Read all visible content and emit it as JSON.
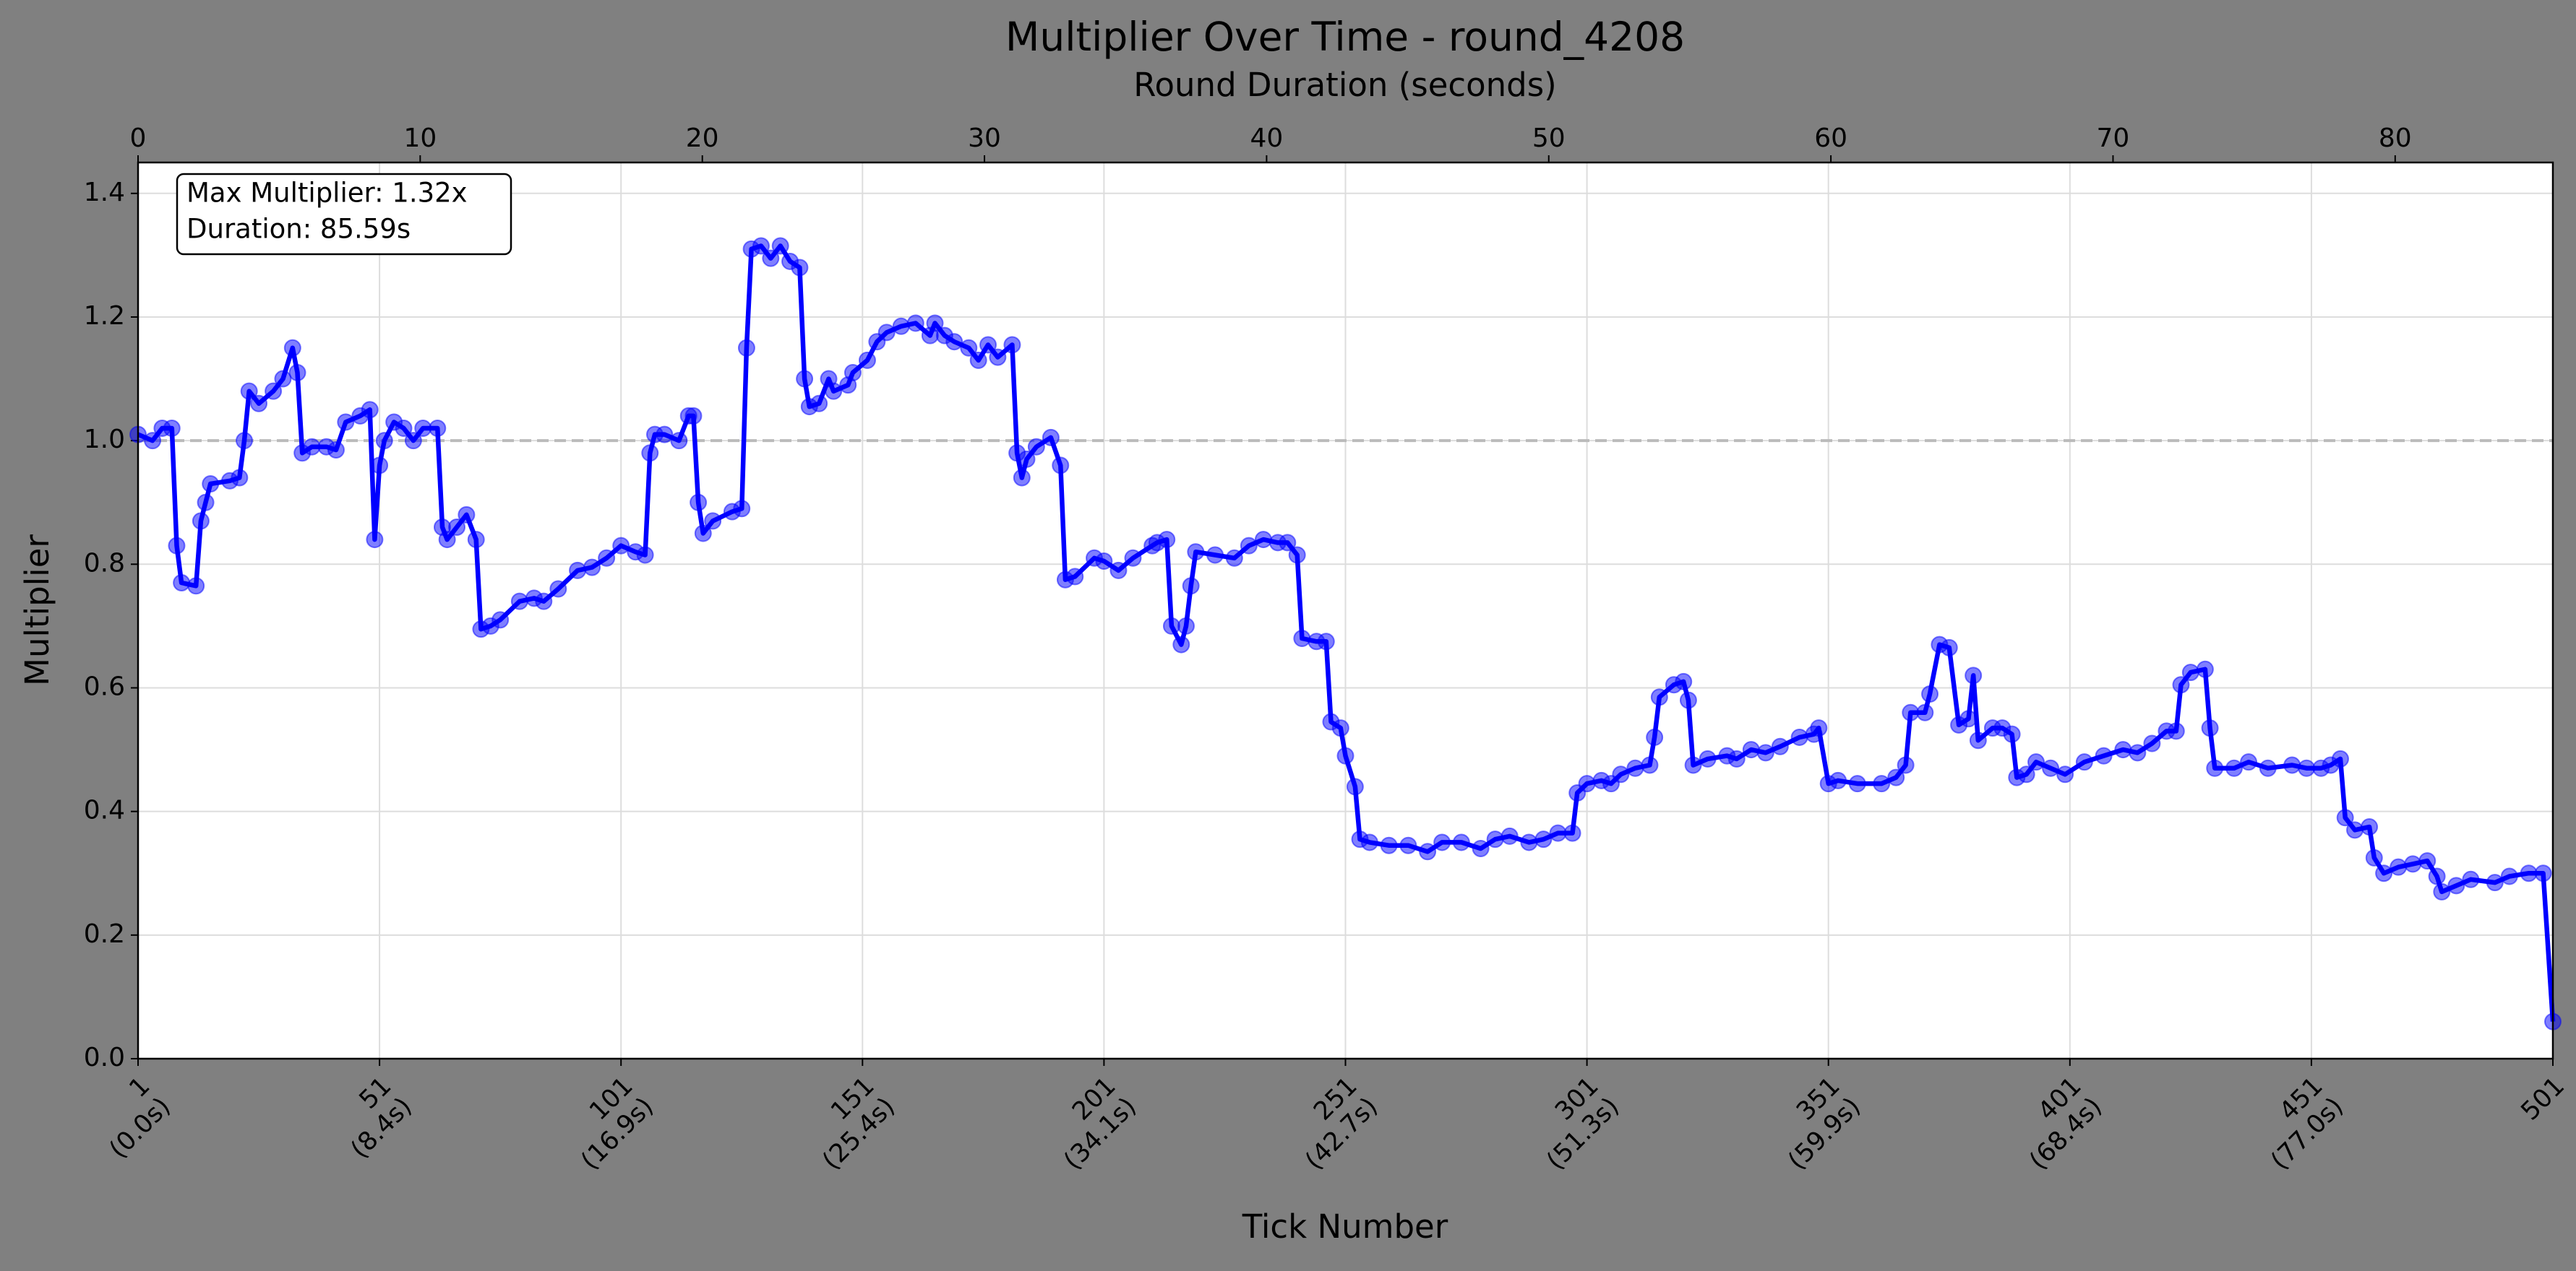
{
  "chart_data": {
    "type": "line",
    "title": "Multiplier Over Time - round_4208",
    "xlabel": "Tick Number",
    "x2label": "Round Duration (seconds)",
    "ylabel": "Multiplier",
    "annotations": [
      "Max Multiplier: 1.32x",
      "Duration: 85.59s"
    ],
    "color": "#0000ff",
    "grid": true,
    "hline": 1.0,
    "xlim": [
      1,
      501
    ],
    "xticks": [
      {
        "value": 1,
        "label": "1\n(0.0s)"
      },
      {
        "value": 51,
        "label": "51\n(8.4s)"
      },
      {
        "value": 101,
        "label": "101\n(16.9s)"
      },
      {
        "value": 151,
        "label": "151\n(25.4s)"
      },
      {
        "value": 201,
        "label": "201\n(34.1s)"
      },
      {
        "value": 251,
        "label": "251\n(42.7s)"
      },
      {
        "value": 301,
        "label": "301\n(51.3s)"
      },
      {
        "value": 351,
        "label": "351\n(59.9s)"
      },
      {
        "value": 401,
        "label": "401\n(68.4s)"
      },
      {
        "value": 451,
        "label": "451\n(77.0s)"
      },
      {
        "value": 501,
        "label": "501"
      }
    ],
    "x2lim": [
      0,
      85.59
    ],
    "x2ticks": [
      0,
      10,
      20,
      30,
      40,
      50,
      60,
      70,
      80
    ],
    "ylim": [
      0,
      1.45
    ],
    "yticks": [
      {
        "value": 0,
        "label": "0.0"
      },
      0.2,
      0.4,
      0.6,
      0.8,
      {
        "value": 1,
        "label": "1.0"
      },
      1.2,
      1.4
    ],
    "x": [
      1,
      4,
      6,
      8,
      9,
      10,
      13,
      14,
      15,
      16,
      20,
      22,
      23,
      24,
      26,
      29,
      31,
      33,
      34,
      35,
      37,
      40,
      42,
      44,
      47,
      49,
      50,
      51,
      52,
      54,
      56,
      58,
      60,
      63,
      64,
      65,
      67,
      69,
      71,
      72,
      74,
      76,
      80,
      83,
      85,
      88,
      92,
      95,
      98,
      101,
      104,
      106,
      107,
      108,
      110,
      113,
      115,
      116,
      117,
      118,
      120,
      124,
      126,
      127,
      128,
      130,
      132,
      134,
      136,
      138,
      139,
      140,
      142,
      144,
      145,
      148,
      149,
      152,
      154,
      156,
      159,
      162,
      165,
      166,
      168,
      170,
      173,
      175,
      177,
      179,
      182,
      183,
      184,
      185,
      187,
      190,
      192,
      193,
      195,
      199,
      201,
      204,
      207,
      211,
      212,
      214,
      215,
      217,
      218,
      219,
      220,
      224,
      228,
      231,
      234,
      237,
      239,
      241,
      242,
      245,
      247,
      248,
      250,
      251,
      253,
      254,
      256,
      260,
      264,
      268,
      271,
      275,
      279,
      282,
      285,
      289,
      292,
      295,
      298,
      299,
      301,
      304,
      306,
      308,
      311,
      314,
      315,
      316,
      319,
      321,
      322,
      323,
      326,
      330,
      332,
      335,
      338,
      341,
      345,
      348,
      349,
      351,
      353,
      357,
      362,
      365,
      367,
      368,
      371,
      372,
      374,
      376,
      378,
      380,
      381,
      382,
      385,
      387,
      389,
      390,
      392,
      394,
      397,
      400,
      404,
      408,
      412,
      415,
      418,
      421,
      423,
      424,
      426,
      429,
      430,
      431,
      435,
      438,
      442,
      447,
      450,
      453,
      455,
      457,
      458,
      460,
      463,
      464,
      466,
      469,
      472,
      475,
      477,
      478,
      481,
      484,
      489,
      492,
      496,
      499,
      501
    ],
    "values": [
      1.01,
      1.0,
      1.02,
      1.02,
      0.83,
      0.77,
      0.765,
      0.87,
      0.9,
      0.93,
      0.935,
      0.94,
      1.0,
      1.08,
      1.06,
      1.08,
      1.1,
      1.15,
      1.11,
      0.98,
      0.99,
      0.99,
      0.985,
      1.03,
      1.04,
      1.05,
      0.84,
      0.96,
      1.0,
      1.03,
      1.02,
      1.0,
      1.02,
      1.02,
      0.86,
      0.84,
      0.86,
      0.88,
      0.84,
      0.695,
      0.7,
      0.71,
      0.74,
      0.745,
      0.74,
      0.76,
      0.79,
      0.795,
      0.81,
      0.83,
      0.82,
      0.815,
      0.98,
      1.01,
      1.01,
      1.0,
      1.04,
      1.04,
      0.9,
      0.85,
      0.87,
      0.885,
      0.89,
      1.15,
      1.31,
      1.315,
      1.295,
      1.315,
      1.29,
      1.28,
      1.1,
      1.055,
      1.06,
      1.1,
      1.08,
      1.09,
      1.11,
      1.13,
      1.16,
      1.175,
      1.185,
      1.19,
      1.17,
      1.19,
      1.17,
      1.16,
      1.15,
      1.13,
      1.155,
      1.135,
      1.155,
      0.98,
      0.94,
      0.97,
      0.99,
      1.005,
      0.96,
      0.775,
      0.78,
      0.81,
      0.805,
      0.79,
      0.81,
      0.83,
      0.835,
      0.84,
      0.7,
      0.67,
      0.7,
      0.765,
      0.82,
      0.815,
      0.81,
      0.83,
      0.84,
      0.835,
      0.835,
      0.815,
      0.68,
      0.675,
      0.675,
      0.545,
      0.535,
      0.49,
      0.44,
      0.355,
      0.35,
      0.345,
      0.345,
      0.335,
      0.35,
      0.35,
      0.34,
      0.355,
      0.36,
      0.35,
      0.355,
      0.365,
      0.365,
      0.43,
      0.445,
      0.45,
      0.445,
      0.46,
      0.47,
      0.475,
      0.52,
      0.585,
      0.605,
      0.61,
      0.58,
      0.475,
      0.485,
      0.49,
      0.485,
      0.5,
      0.495,
      0.505,
      0.52,
      0.525,
      0.535,
      0.445,
      0.45,
      0.445,
      0.445,
      0.455,
      0.475,
      0.56,
      0.56,
      0.59,
      0.67,
      0.665,
      0.54,
      0.55,
      0.62,
      0.515,
      0.535,
      0.535,
      0.525,
      0.455,
      0.46,
      0.48,
      0.47,
      0.46,
      0.48,
      0.49,
      0.5,
      0.495,
      0.51,
      0.53,
      0.53,
      0.605,
      0.625,
      0.63,
      0.535,
      0.47,
      0.47,
      0.48,
      0.47,
      0.475,
      0.47,
      0.47,
      0.475,
      0.485,
      0.39,
      0.37,
      0.375,
      0.325,
      0.3,
      0.31,
      0.315,
      0.32,
      0.295,
      0.27,
      0.28,
      0.29,
      0.285,
      0.295,
      0.3,
      0.3,
      0.06
    ]
  }
}
